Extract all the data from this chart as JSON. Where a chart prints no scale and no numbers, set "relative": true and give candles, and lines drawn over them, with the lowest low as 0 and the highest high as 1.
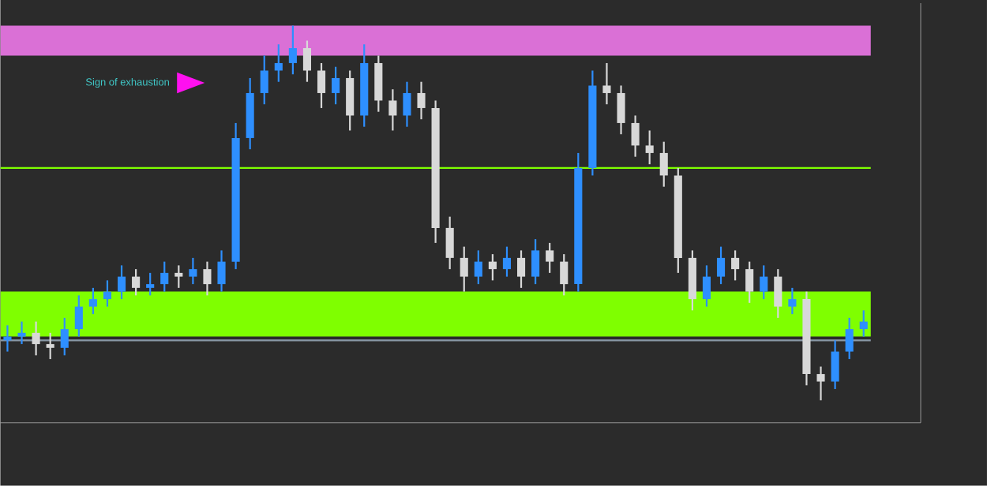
{
  "chart_data": {
    "type": "candlestick",
    "relative": true,
    "categories": [
      null,
      null,
      null,
      null,
      null,
      null,
      null,
      null,
      null,
      null,
      null,
      null,
      null,
      null,
      null,
      null,
      null,
      null,
      null,
      null,
      null,
      null,
      null,
      null,
      null,
      null,
      null,
      null,
      null,
      null,
      null,
      null,
      null,
      null,
      null,
      null,
      null,
      null,
      null,
      null,
      null,
      null,
      null,
      null,
      null,
      null,
      null,
      null,
      null,
      null,
      null,
      null,
      null,
      null,
      null,
      null,
      null,
      null,
      null,
      null,
      null
    ],
    "ohlc": [
      [
        0.16,
        0.2,
        0.13,
        0.17
      ],
      [
        0.17,
        0.21,
        0.15,
        0.18
      ],
      [
        0.18,
        0.21,
        0.12,
        0.15
      ],
      [
        0.15,
        0.18,
        0.11,
        0.14
      ],
      [
        0.14,
        0.22,
        0.12,
        0.19
      ],
      [
        0.19,
        0.28,
        0.17,
        0.25
      ],
      [
        0.25,
        0.3,
        0.23,
        0.27
      ],
      [
        0.27,
        0.32,
        0.25,
        0.29
      ],
      [
        0.29,
        0.36,
        0.27,
        0.33
      ],
      [
        0.33,
        0.35,
        0.28,
        0.3
      ],
      [
        0.3,
        0.34,
        0.28,
        0.31
      ],
      [
        0.31,
        0.37,
        0.29,
        0.34
      ],
      [
        0.34,
        0.36,
        0.3,
        0.33
      ],
      [
        0.33,
        0.38,
        0.31,
        0.35
      ],
      [
        0.35,
        0.37,
        0.28,
        0.31
      ],
      [
        0.31,
        0.4,
        0.29,
        0.37
      ],
      [
        0.37,
        0.74,
        0.35,
        0.7
      ],
      [
        0.7,
        0.86,
        0.67,
        0.82
      ],
      [
        0.82,
        0.92,
        0.79,
        0.88
      ],
      [
        0.88,
        0.95,
        0.85,
        0.9
      ],
      [
        0.9,
        1,
        0.87,
        0.94
      ],
      [
        0.94,
        0.96,
        0.85,
        0.88
      ],
      [
        0.88,
        0.9,
        0.78,
        0.82
      ],
      [
        0.82,
        0.89,
        0.79,
        0.86
      ],
      [
        0.86,
        0.88,
        0.72,
        0.76
      ],
      [
        0.76,
        0.95,
        0.73,
        0.9
      ],
      [
        0.9,
        0.92,
        0.77,
        0.8
      ],
      [
        0.8,
        0.83,
        0.72,
        0.76
      ],
      [
        0.76,
        0.85,
        0.73,
        0.82
      ],
      [
        0.82,
        0.85,
        0.75,
        0.78
      ],
      [
        0.78,
        0.8,
        0.42,
        0.46
      ],
      [
        0.46,
        0.49,
        0.35,
        0.38
      ],
      [
        0.38,
        0.41,
        0.29,
        0.33
      ],
      [
        0.33,
        0.4,
        0.31,
        0.37
      ],
      [
        0.37,
        0.39,
        0.32,
        0.35
      ],
      [
        0.35,
        0.41,
        0.33,
        0.38
      ],
      [
        0.38,
        0.4,
        0.3,
        0.33
      ],
      [
        0.33,
        0.43,
        0.31,
        0.4
      ],
      [
        0.4,
        0.42,
        0.34,
        0.37
      ],
      [
        0.37,
        0.39,
        0.28,
        0.31
      ],
      [
        0.31,
        0.66,
        0.29,
        0.62
      ],
      [
        0.62,
        0.88,
        0.6,
        0.84
      ],
      [
        0.84,
        0.9,
        0.79,
        0.82
      ],
      [
        0.82,
        0.84,
        0.71,
        0.74
      ],
      [
        0.74,
        0.76,
        0.65,
        0.68
      ],
      [
        0.68,
        0.72,
        0.63,
        0.66
      ],
      [
        0.66,
        0.69,
        0.57,
        0.6
      ],
      [
        0.6,
        0.62,
        0.34,
        0.38
      ],
      [
        0.38,
        0.4,
        0.24,
        0.27
      ],
      [
        0.27,
        0.36,
        0.25,
        0.33
      ],
      [
        0.33,
        0.41,
        0.31,
        0.38
      ],
      [
        0.38,
        0.4,
        0.32,
        0.35
      ],
      [
        0.35,
        0.37,
        0.26,
        0.29
      ],
      [
        0.29,
        0.36,
        0.27,
        0.33
      ],
      [
        0.33,
        0.35,
        0.22,
        0.25
      ],
      [
        0.25,
        0.3,
        0.23,
        0.27
      ],
      [
        0.27,
        0.29,
        0.04,
        0.07
      ],
      [
        0.07,
        0.09,
        0,
        0.05
      ],
      [
        0.05,
        0.16,
        0.03,
        0.13
      ],
      [
        0.13,
        0.22,
        0.11,
        0.19
      ],
      [
        0.19,
        0.24,
        0.17,
        0.21
      ]
    ],
    "bands": [
      {
        "axis": "y",
        "from": 0.92,
        "to": 1,
        "color": "#da70d6"
      },
      {
        "axis": "y",
        "from": 0.17,
        "to": 0.29,
        "color": "#7fff00"
      }
    ],
    "ref_lines": [
      {
        "axis": "y",
        "value": 0.62,
        "color": "#7fff00"
      },
      {
        "axis": "y",
        "value": 0.16,
        "color": "#8a9aa8"
      }
    ],
    "annotations": [
      "Sign of exhaustion"
    ]
  }
}
